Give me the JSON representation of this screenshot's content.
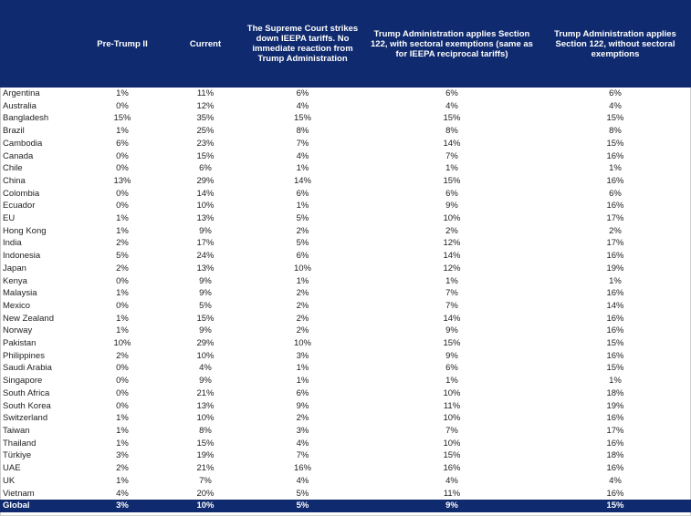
{
  "headers": [
    "",
    "Pre-Trump II",
    "Current",
    "The Supreme Court strikes down IEEPA tariffs. No immediate reaction from Trump Administration",
    "Trump Administration applies Section 122, with sectoral exemptions (same as for IEEPA reciprocal tariffs)",
    "Trump Administration applies Section 122, without sectoral exemptions"
  ],
  "rows": [
    [
      "Argentina",
      "1%",
      "11%",
      "6%",
      "6%",
      "6%"
    ],
    [
      "Australia",
      "0%",
      "12%",
      "4%",
      "4%",
      "4%"
    ],
    [
      "Bangladesh",
      "15%",
      "35%",
      "15%",
      "15%",
      "15%"
    ],
    [
      "Brazil",
      "1%",
      "25%",
      "8%",
      "8%",
      "8%"
    ],
    [
      "Cambodia",
      "6%",
      "23%",
      "7%",
      "14%",
      "15%"
    ],
    [
      "Canada",
      "0%",
      "15%",
      "4%",
      "7%",
      "16%"
    ],
    [
      "Chile",
      "0%",
      "6%",
      "1%",
      "1%",
      "1%"
    ],
    [
      "China",
      "13%",
      "29%",
      "14%",
      "15%",
      "16%"
    ],
    [
      "Colombia",
      "0%",
      "14%",
      "6%",
      "6%",
      "6%"
    ],
    [
      "Ecuador",
      "0%",
      "10%",
      "1%",
      "9%",
      "16%"
    ],
    [
      "EU",
      "1%",
      "13%",
      "5%",
      "10%",
      "17%"
    ],
    [
      "Hong Kong",
      "1%",
      "9%",
      "2%",
      "2%",
      "2%"
    ],
    [
      "India",
      "2%",
      "17%",
      "5%",
      "12%",
      "17%"
    ],
    [
      "Indonesia",
      "5%",
      "24%",
      "6%",
      "14%",
      "16%"
    ],
    [
      "Japan",
      "2%",
      "13%",
      "10%",
      "12%",
      "19%"
    ],
    [
      "Kenya",
      "0%",
      "9%",
      "1%",
      "1%",
      "1%"
    ],
    [
      "Malaysia",
      "1%",
      "9%",
      "2%",
      "7%",
      "16%"
    ],
    [
      "Mexico",
      "0%",
      "5%",
      "2%",
      "7%",
      "14%"
    ],
    [
      "New Zealand",
      "1%",
      "15%",
      "2%",
      "14%",
      "16%"
    ],
    [
      "Norway",
      "1%",
      "9%",
      "2%",
      "9%",
      "16%"
    ],
    [
      "Pakistan",
      "10%",
      "29%",
      "10%",
      "15%",
      "15%"
    ],
    [
      "Philippines",
      "2%",
      "10%",
      "3%",
      "9%",
      "16%"
    ],
    [
      "Saudi Arabia",
      "0%",
      "4%",
      "1%",
      "6%",
      "15%"
    ],
    [
      "Singapore",
      "0%",
      "9%",
      "1%",
      "1%",
      "1%"
    ],
    [
      "South Africa",
      "0%",
      "21%",
      "6%",
      "10%",
      "18%"
    ],
    [
      "South Korea",
      "0%",
      "13%",
      "9%",
      "11%",
      "19%"
    ],
    [
      "Switzerland",
      "1%",
      "10%",
      "2%",
      "10%",
      "16%"
    ],
    [
      "Taiwan",
      "1%",
      "8%",
      "3%",
      "7%",
      "17%"
    ],
    [
      "Thailand",
      "1%",
      "15%",
      "4%",
      "10%",
      "16%"
    ],
    [
      "Türkiye",
      "3%",
      "19%",
      "7%",
      "15%",
      "18%"
    ],
    [
      "UAE",
      "2%",
      "21%",
      "16%",
      "16%",
      "16%"
    ],
    [
      "UK",
      "1%",
      "7%",
      "4%",
      "4%",
      "4%"
    ],
    [
      "Vietnam",
      "4%",
      "20%",
      "5%",
      "11%",
      "16%"
    ]
  ],
  "global_row": [
    "Global",
    "3%",
    "10%",
    "5%",
    "9%",
    "15%"
  ],
  "colors": {
    "header_bg": "#0f2a6e",
    "header_text": "#ffffff",
    "body_text": "#222222"
  }
}
